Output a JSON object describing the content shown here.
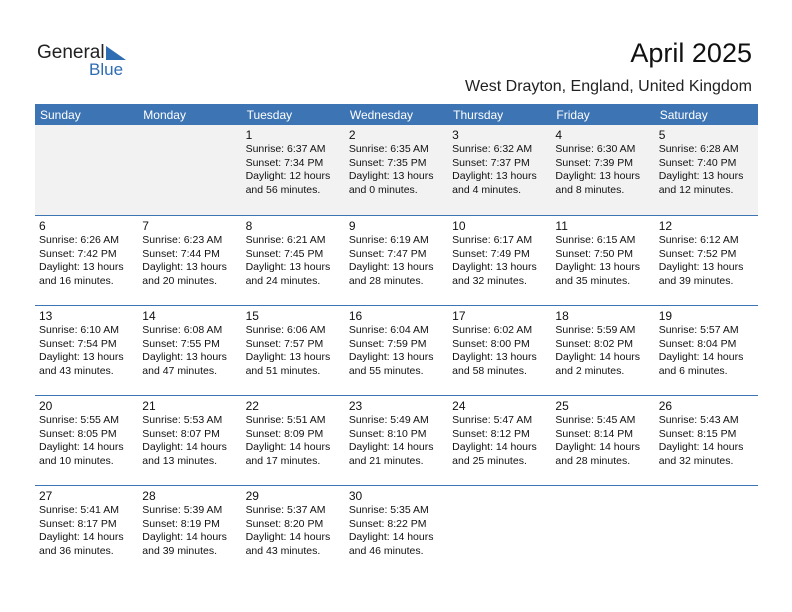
{
  "logo": {
    "general": "General",
    "blue": "Blue"
  },
  "header": {
    "title": "April 2025",
    "subtitle": "West Drayton, England, United Kingdom"
  },
  "weekdays": [
    "Sunday",
    "Monday",
    "Tuesday",
    "Wednesday",
    "Thursday",
    "Friday",
    "Saturday"
  ],
  "weeks": [
    [
      null,
      null,
      {
        "day": 1,
        "lines": [
          "Sunrise: 6:37 AM",
          "Sunset: 7:34 PM",
          "Daylight: 12 hours",
          "and 56 minutes."
        ]
      },
      {
        "day": 2,
        "lines": [
          "Sunrise: 6:35 AM",
          "Sunset: 7:35 PM",
          "Daylight: 13 hours",
          "and 0 minutes."
        ]
      },
      {
        "day": 3,
        "lines": [
          "Sunrise: 6:32 AM",
          "Sunset: 7:37 PM",
          "Daylight: 13 hours",
          "and 4 minutes."
        ]
      },
      {
        "day": 4,
        "lines": [
          "Sunrise: 6:30 AM",
          "Sunset: 7:39 PM",
          "Daylight: 13 hours",
          "and 8 minutes."
        ]
      },
      {
        "day": 5,
        "lines": [
          "Sunrise: 6:28 AM",
          "Sunset: 7:40 PM",
          "Daylight: 13 hours",
          "and 12 minutes."
        ]
      }
    ],
    [
      {
        "day": 6,
        "lines": [
          "Sunrise: 6:26 AM",
          "Sunset: 7:42 PM",
          "Daylight: 13 hours",
          "and 16 minutes."
        ]
      },
      {
        "day": 7,
        "lines": [
          "Sunrise: 6:23 AM",
          "Sunset: 7:44 PM",
          "Daylight: 13 hours",
          "and 20 minutes."
        ]
      },
      {
        "day": 8,
        "lines": [
          "Sunrise: 6:21 AM",
          "Sunset: 7:45 PM",
          "Daylight: 13 hours",
          "and 24 minutes."
        ]
      },
      {
        "day": 9,
        "lines": [
          "Sunrise: 6:19 AM",
          "Sunset: 7:47 PM",
          "Daylight: 13 hours",
          "and 28 minutes."
        ]
      },
      {
        "day": 10,
        "lines": [
          "Sunrise: 6:17 AM",
          "Sunset: 7:49 PM",
          "Daylight: 13 hours",
          "and 32 minutes."
        ]
      },
      {
        "day": 11,
        "lines": [
          "Sunrise: 6:15 AM",
          "Sunset: 7:50 PM",
          "Daylight: 13 hours",
          "and 35 minutes."
        ]
      },
      {
        "day": 12,
        "lines": [
          "Sunrise: 6:12 AM",
          "Sunset: 7:52 PM",
          "Daylight: 13 hours",
          "and 39 minutes."
        ]
      }
    ],
    [
      {
        "day": 13,
        "lines": [
          "Sunrise: 6:10 AM",
          "Sunset: 7:54 PM",
          "Daylight: 13 hours",
          "and 43 minutes."
        ]
      },
      {
        "day": 14,
        "lines": [
          "Sunrise: 6:08 AM",
          "Sunset: 7:55 PM",
          "Daylight: 13 hours",
          "and 47 minutes."
        ]
      },
      {
        "day": 15,
        "lines": [
          "Sunrise: 6:06 AM",
          "Sunset: 7:57 PM",
          "Daylight: 13 hours",
          "and 51 minutes."
        ]
      },
      {
        "day": 16,
        "lines": [
          "Sunrise: 6:04 AM",
          "Sunset: 7:59 PM",
          "Daylight: 13 hours",
          "and 55 minutes."
        ]
      },
      {
        "day": 17,
        "lines": [
          "Sunrise: 6:02 AM",
          "Sunset: 8:00 PM",
          "Daylight: 13 hours",
          "and 58 minutes."
        ]
      },
      {
        "day": 18,
        "lines": [
          "Sunrise: 5:59 AM",
          "Sunset: 8:02 PM",
          "Daylight: 14 hours",
          "and 2 minutes."
        ]
      },
      {
        "day": 19,
        "lines": [
          "Sunrise: 5:57 AM",
          "Sunset: 8:04 PM",
          "Daylight: 14 hours",
          "and 6 minutes."
        ]
      }
    ],
    [
      {
        "day": 20,
        "lines": [
          "Sunrise: 5:55 AM",
          "Sunset: 8:05 PM",
          "Daylight: 14 hours",
          "and 10 minutes."
        ]
      },
      {
        "day": 21,
        "lines": [
          "Sunrise: 5:53 AM",
          "Sunset: 8:07 PM",
          "Daylight: 14 hours",
          "and 13 minutes."
        ]
      },
      {
        "day": 22,
        "lines": [
          "Sunrise: 5:51 AM",
          "Sunset: 8:09 PM",
          "Daylight: 14 hours",
          "and 17 minutes."
        ]
      },
      {
        "day": 23,
        "lines": [
          "Sunrise: 5:49 AM",
          "Sunset: 8:10 PM",
          "Daylight: 14 hours",
          "and 21 minutes."
        ]
      },
      {
        "day": 24,
        "lines": [
          "Sunrise: 5:47 AM",
          "Sunset: 8:12 PM",
          "Daylight: 14 hours",
          "and 25 minutes."
        ]
      },
      {
        "day": 25,
        "lines": [
          "Sunrise: 5:45 AM",
          "Sunset: 8:14 PM",
          "Daylight: 14 hours",
          "and 28 minutes."
        ]
      },
      {
        "day": 26,
        "lines": [
          "Sunrise: 5:43 AM",
          "Sunset: 8:15 PM",
          "Daylight: 14 hours",
          "and 32 minutes."
        ]
      }
    ],
    [
      {
        "day": 27,
        "lines": [
          "Sunrise: 5:41 AM",
          "Sunset: 8:17 PM",
          "Daylight: 14 hours",
          "and 36 minutes."
        ]
      },
      {
        "day": 28,
        "lines": [
          "Sunrise: 5:39 AM",
          "Sunset: 8:19 PM",
          "Daylight: 14 hours",
          "and 39 minutes."
        ]
      },
      {
        "day": 29,
        "lines": [
          "Sunrise: 5:37 AM",
          "Sunset: 8:20 PM",
          "Daylight: 14 hours",
          "and 43 minutes."
        ]
      },
      {
        "day": 30,
        "lines": [
          "Sunrise: 5:35 AM",
          "Sunset: 8:22 PM",
          "Daylight: 14 hours",
          "and 46 minutes."
        ]
      },
      null,
      null,
      null
    ]
  ]
}
